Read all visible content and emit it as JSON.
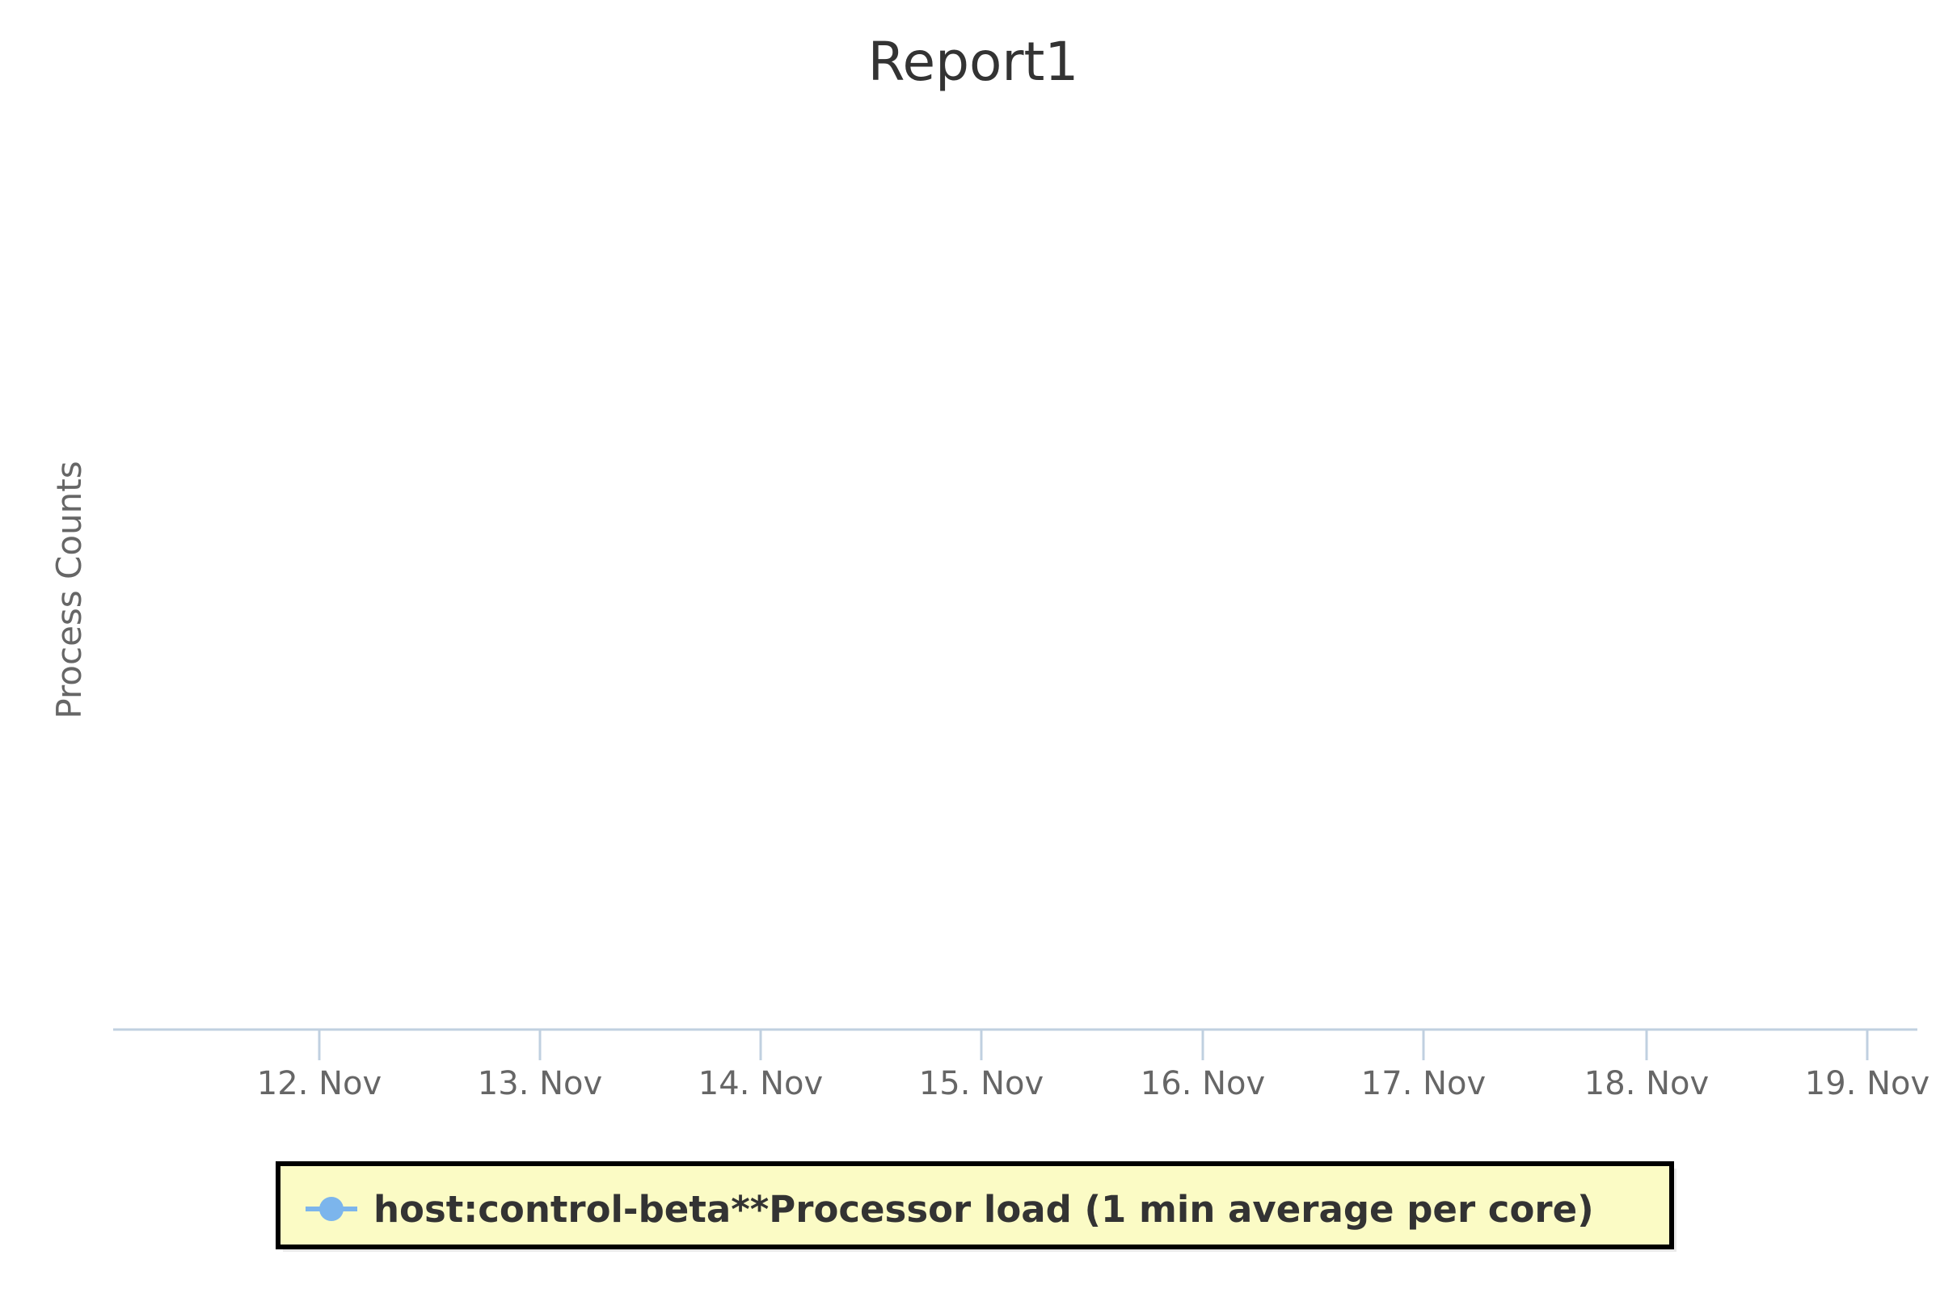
{
  "chart_data": {
    "type": "line",
    "title": "Report1",
    "xlabel": "",
    "ylabel": "Process Counts",
    "x_axis_type": "datetime",
    "x_ticks": [
      "12. Nov",
      "13. Nov",
      "14. Nov",
      "15. Nov",
      "16. Nov",
      "17. Nov",
      "18. Nov",
      "19. Nov"
    ],
    "grid": false,
    "legend": {
      "placement": "bottom-center",
      "background": "#fbfbc5",
      "border": "#000000"
    },
    "series": [
      {
        "name": "host:control-beta**Processor load (1 min average per core)",
        "color": "#7cb5ec",
        "values": []
      }
    ]
  }
}
